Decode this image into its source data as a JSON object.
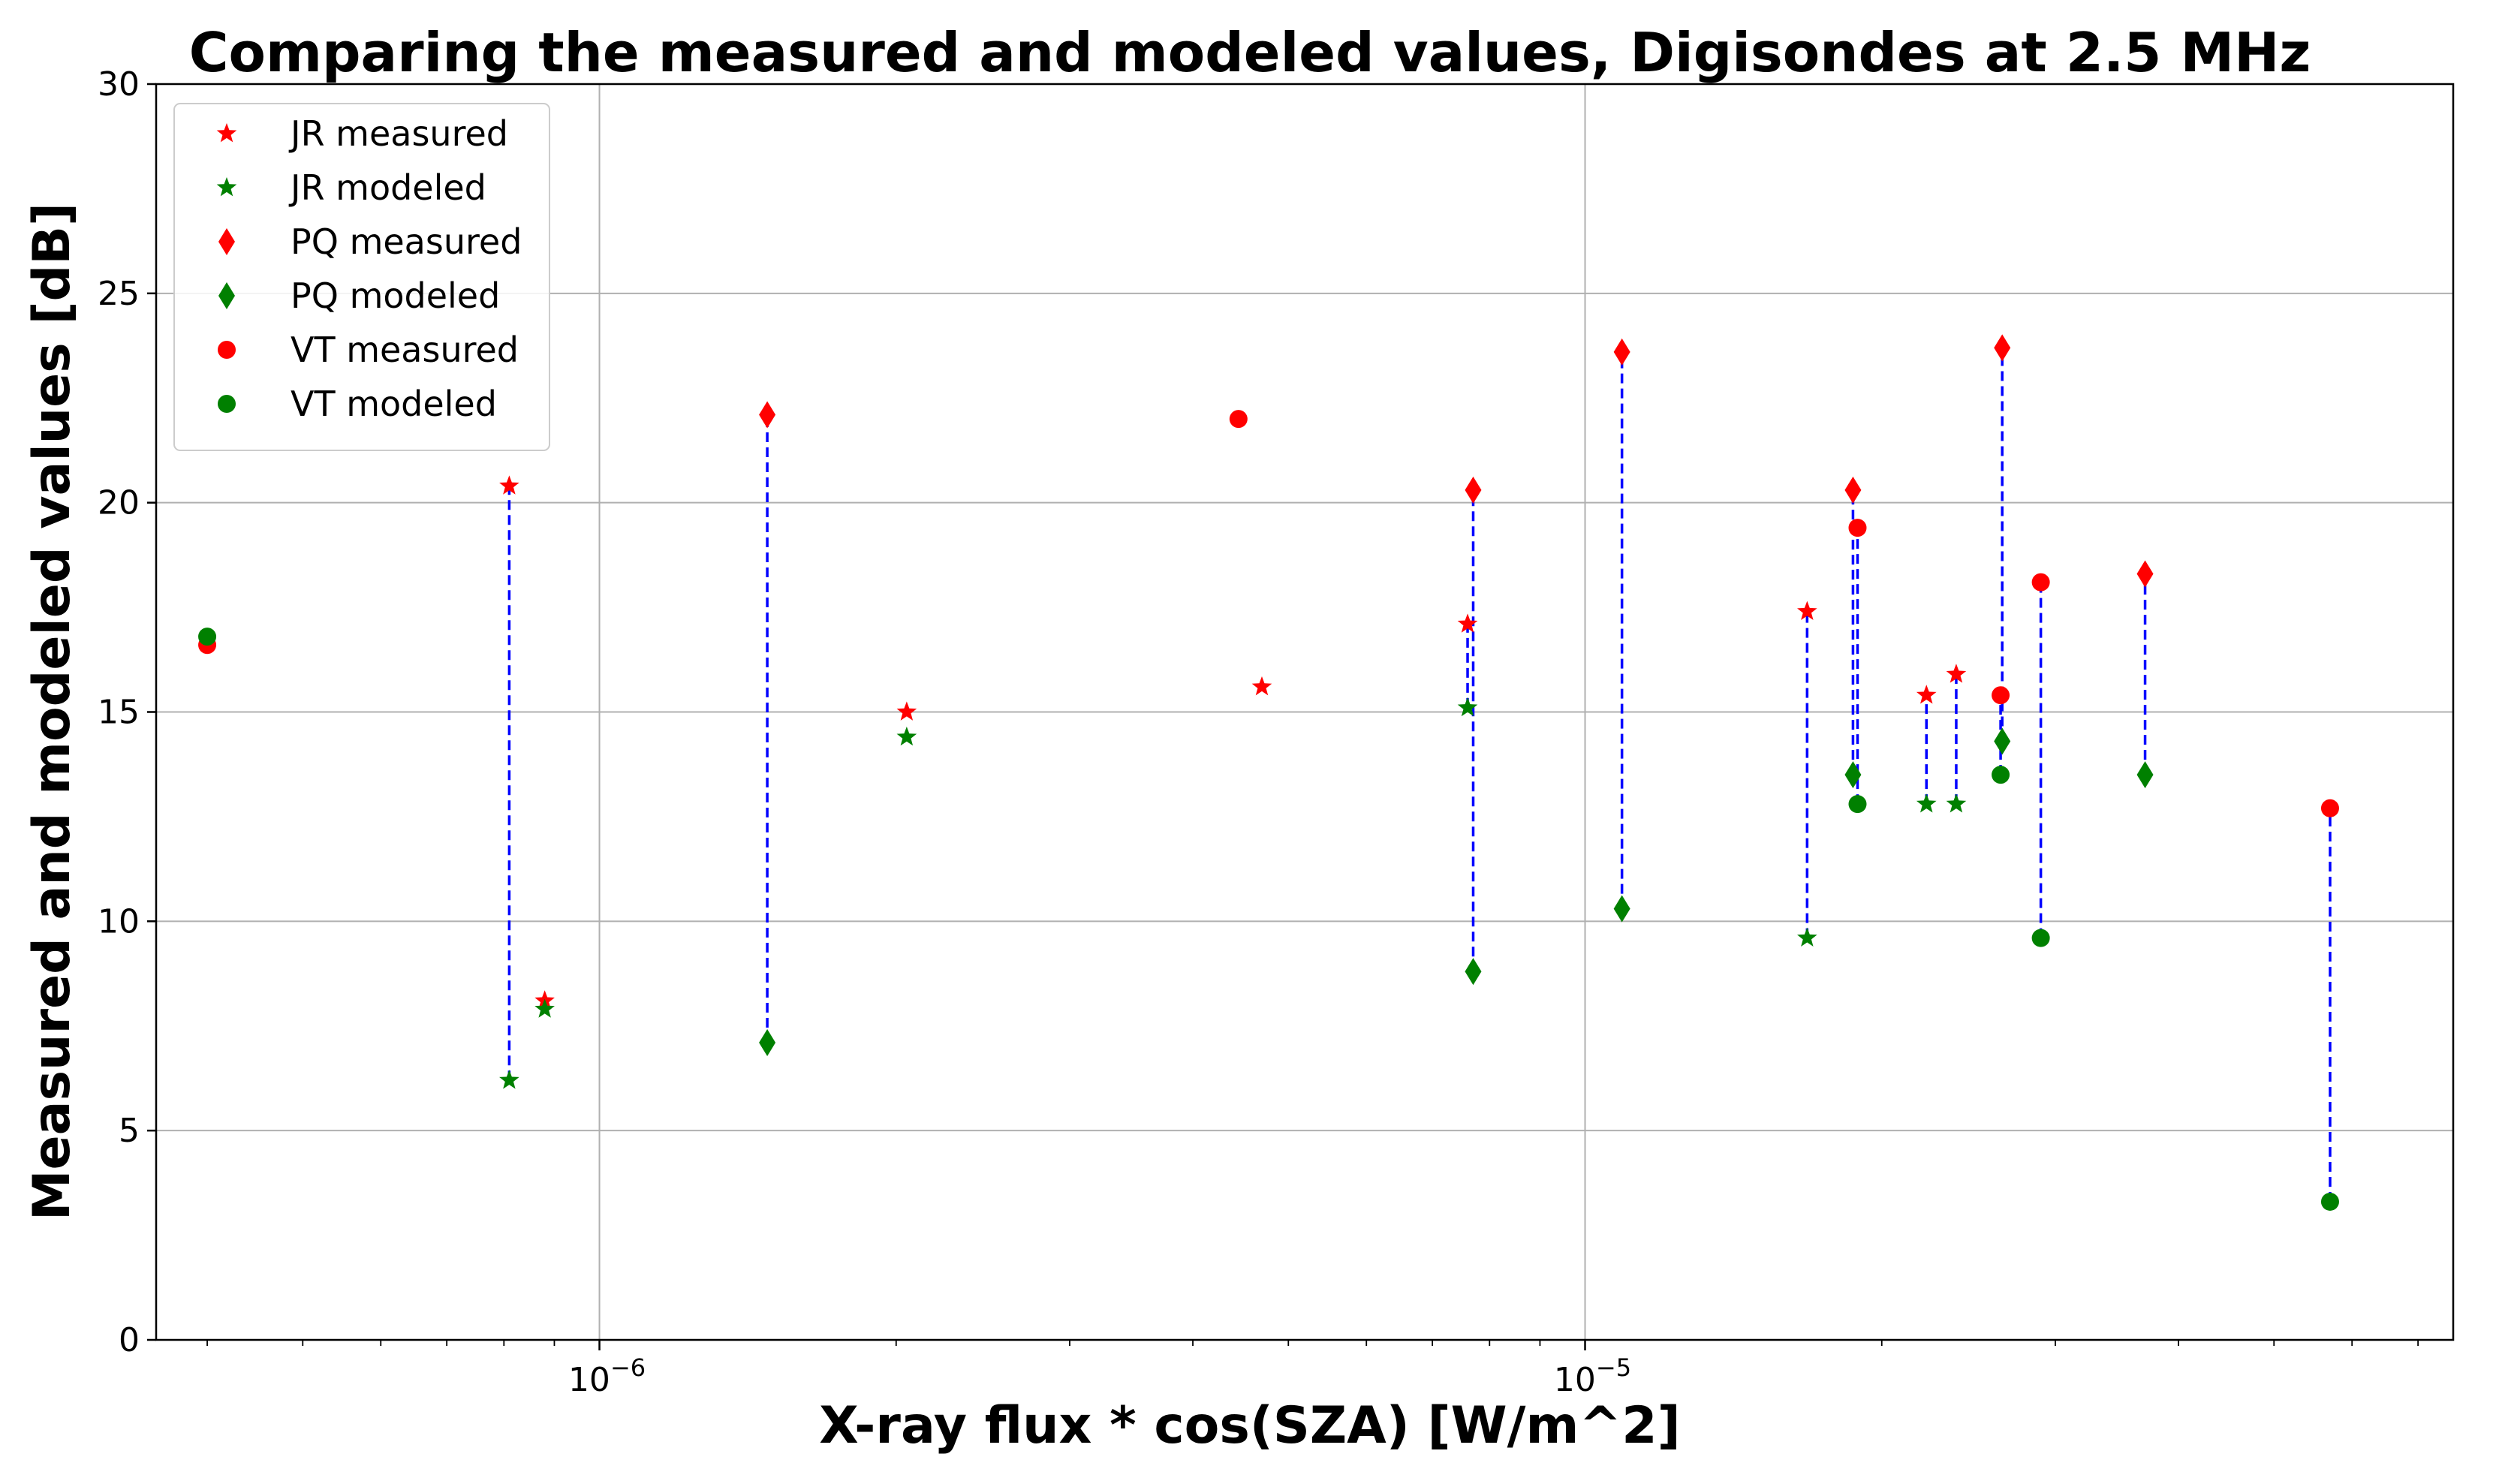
{
  "chart_data": {
    "type": "scatter",
    "title": "Comparing the measured and modeled values, Digisondes at 2.5 MHz",
    "xlabel": "X-ray flux * cos(SZA) [W/m^2]",
    "ylabel": "Measured and modeled values [dB]",
    "xscale": "log",
    "xlim": [
      3.55e-07,
      7.6e-05
    ],
    "ylim": [
      0,
      30
    ],
    "xticks": [
      {
        "value": 1e-06,
        "base": "10",
        "exp": "−6"
      },
      {
        "value": 1e-05,
        "base": "10",
        "exp": "−5"
      }
    ],
    "yticks": [
      0,
      5,
      10,
      15,
      20,
      25,
      30
    ],
    "grid": true,
    "legend_position": "top-left",
    "series": [
      {
        "name": "JR measured",
        "marker": "star",
        "color": "#ff0000",
        "points": [
          [
            8.1e-07,
            20.4
          ],
          [
            8.8e-07,
            8.1
          ],
          [
            2.05e-06,
            15.0
          ],
          [
            4.7e-06,
            15.6
          ],
          [
            7.6e-06,
            17.1
          ],
          [
            1.68e-05,
            17.4
          ],
          [
            2.22e-05,
            15.4
          ],
          [
            2.38e-05,
            15.9
          ]
        ]
      },
      {
        "name": "JR modeled",
        "marker": "star",
        "color": "#008000",
        "points": [
          [
            8.1e-07,
            6.2
          ],
          [
            8.8e-07,
            7.9
          ],
          [
            2.05e-06,
            14.4
          ],
          [
            7.6e-06,
            15.1
          ],
          [
            1.68e-05,
            9.6
          ],
          [
            2.22e-05,
            12.8
          ],
          [
            2.38e-05,
            12.8
          ]
        ]
      },
      {
        "name": "PQ measured",
        "marker": "diamond",
        "color": "#ff0000",
        "points": [
          [
            1.48e-06,
            22.1
          ],
          [
            7.7e-06,
            20.3
          ],
          [
            1.09e-05,
            23.6
          ],
          [
            1.87e-05,
            20.3
          ],
          [
            2.65e-05,
            23.7
          ],
          [
            3.7e-05,
            18.3
          ]
        ]
      },
      {
        "name": "PQ modeled",
        "marker": "diamond",
        "color": "#008000",
        "points": [
          [
            1.48e-06,
            7.1
          ],
          [
            7.7e-06,
            8.8
          ],
          [
            1.09e-05,
            10.3
          ],
          [
            1.87e-05,
            13.5
          ],
          [
            2.65e-05,
            14.3
          ],
          [
            3.7e-05,
            13.5
          ]
        ]
      },
      {
        "name": "VT measured",
        "marker": "circle",
        "color": "#ff0000",
        "points": [
          [
            4e-07,
            16.6
          ],
          [
            4.45e-06,
            22.0
          ],
          [
            1.89e-05,
            19.4
          ],
          [
            2.64e-05,
            15.4
          ],
          [
            2.9e-05,
            18.1
          ],
          [
            5.7e-05,
            12.7
          ]
        ]
      },
      {
        "name": "VT modeled",
        "marker": "circle",
        "color": "#008000",
        "points": [
          [
            4e-07,
            16.8
          ],
          [
            1.89e-05,
            12.8
          ],
          [
            2.64e-05,
            13.5
          ],
          [
            2.9e-05,
            9.6
          ],
          [
            5.7e-05,
            3.3
          ]
        ]
      }
    ],
    "connectors": {
      "color": "#0000ff",
      "style": "dashed",
      "segments": [
        [
          8.1e-07,
          6.2,
          20.4
        ],
        [
          1.48e-06,
          7.1,
          22.1
        ],
        [
          7.6e-06,
          15.1,
          17.1
        ],
        [
          7.7e-06,
          8.8,
          20.3
        ],
        [
          1.09e-05,
          10.3,
          23.6
        ],
        [
          1.68e-05,
          9.6,
          17.4
        ],
        [
          1.87e-05,
          13.5,
          20.3
        ],
        [
          1.89e-05,
          12.8,
          19.4
        ],
        [
          2.22e-05,
          12.8,
          15.4
        ],
        [
          2.38e-05,
          12.8,
          15.9
        ],
        [
          2.64e-05,
          13.5,
          15.4
        ],
        [
          2.65e-05,
          14.3,
          23.7
        ],
        [
          2.9e-05,
          9.6,
          18.1
        ],
        [
          3.7e-05,
          13.5,
          18.3
        ],
        [
          5.7e-05,
          3.3,
          12.7
        ]
      ]
    }
  }
}
